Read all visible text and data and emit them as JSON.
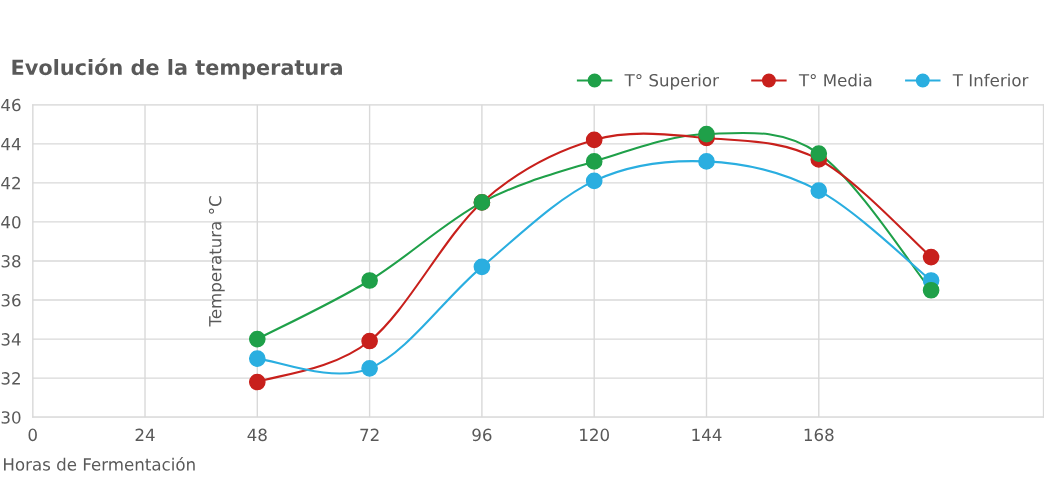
{
  "chart_data": {
    "type": "line",
    "title": "Evolución de la temperatura",
    "xlabel": "Horas de Fermentación",
    "ylabel": "Temperatura °C",
    "x": [
      48,
      72,
      96,
      120,
      144,
      168,
      192
    ],
    "series": [
      {
        "name": "T° Superior",
        "color": "#1fa049",
        "values": [
          34.0,
          37.0,
          41.0,
          43.1,
          44.5,
          43.5,
          36.5
        ]
      },
      {
        "name": "T° Media",
        "color": "#c8201c",
        "values": [
          31.8,
          33.9,
          41.0,
          44.2,
          44.3,
          43.2,
          38.2
        ]
      },
      {
        "name": "T Inferior",
        "color": "#2aaee0",
        "values": [
          33.0,
          32.5,
          37.7,
          42.1,
          43.1,
          41.6,
          37.0
        ]
      }
    ],
    "xlim": [
      0,
      216
    ],
    "xticks": [
      0,
      24,
      48,
      72,
      96,
      120,
      144,
      168
    ],
    "ylim": [
      30,
      46
    ],
    "yticks": [
      30,
      32,
      34,
      36,
      38,
      40,
      42,
      44,
      46
    ],
    "grid": true,
    "legend": "top right",
    "marker": "circle",
    "line_style": "solid"
  }
}
